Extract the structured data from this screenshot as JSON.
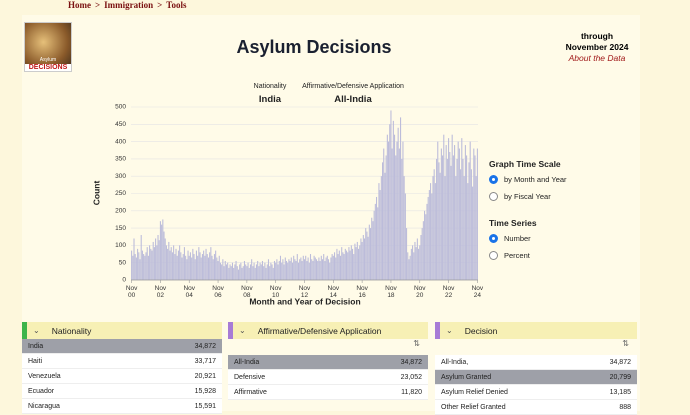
{
  "breadcrumb": {
    "items": [
      "Home",
      "Immigration",
      "Tools"
    ],
    "separator": ">"
  },
  "header": {
    "logo_top": "Asylum",
    "logo_bottom": "DECISIONS",
    "title": "Asylum Decisions",
    "through": "through",
    "date": "November 2024",
    "link": "About the Data"
  },
  "filters": [
    {
      "label": "Nationality",
      "value": "India"
    },
    {
      "label": "Affirmative/Defensive Application",
      "value": "All-India"
    }
  ],
  "chart_data": {
    "type": "bar",
    "x_label": "Month and Year of Decision",
    "y_label": "Count",
    "color": "#bcbcda",
    "grid": true,
    "ylim": [
      0,
      500
    ],
    "yticks": [
      0,
      50,
      100,
      150,
      200,
      250,
      300,
      350,
      400,
      450,
      500
    ],
    "categories": [
      "Nov 00",
      null,
      null,
      null,
      null,
      null,
      null,
      null,
      null,
      null,
      null,
      null,
      null,
      null,
      null,
      null,
      null,
      null,
      null,
      null,
      null,
      null,
      null,
      null,
      "Nov 02",
      null,
      null,
      null,
      null,
      null,
      null,
      null,
      null,
      null,
      null,
      null,
      null,
      null,
      null,
      null,
      null,
      null,
      null,
      null,
      null,
      null,
      null,
      null,
      "Nov 04",
      null,
      null,
      null,
      null,
      null,
      null,
      null,
      null,
      null,
      null,
      null,
      null,
      null,
      null,
      null,
      null,
      null,
      null,
      null,
      null,
      null,
      null,
      null,
      "Nov 06",
      null,
      null,
      null,
      null,
      null,
      null,
      null,
      null,
      null,
      null,
      null,
      null,
      null,
      null,
      null,
      null,
      null,
      null,
      null,
      null,
      null,
      null,
      null,
      "Nov 08",
      null,
      null,
      null,
      null,
      null,
      null,
      null,
      null,
      null,
      null,
      null,
      null,
      null,
      null,
      null,
      null,
      null,
      null,
      null,
      null,
      null,
      null,
      null,
      "Nov 10",
      null,
      null,
      null,
      null,
      null,
      null,
      null,
      null,
      null,
      null,
      null,
      null,
      null,
      null,
      null,
      null,
      null,
      null,
      null,
      null,
      null,
      null,
      null,
      "Nov 12",
      null,
      null,
      null,
      null,
      null,
      null,
      null,
      null,
      null,
      null,
      null,
      null,
      null,
      null,
      null,
      null,
      null,
      null,
      null,
      null,
      null,
      null,
      null,
      "Nov 14",
      null,
      null,
      null,
      null,
      null,
      null,
      null,
      null,
      null,
      null,
      null,
      null,
      null,
      null,
      null,
      null,
      null,
      null,
      null,
      null,
      null,
      null,
      null,
      "Nov 16",
      null,
      null,
      null,
      null,
      null,
      null,
      null,
      null,
      null,
      null,
      null,
      null,
      null,
      null,
      null,
      null,
      null,
      null,
      null,
      null,
      null,
      null,
      null,
      "Nov 18",
      null,
      null,
      null,
      null,
      null,
      null,
      null,
      null,
      null,
      null,
      null,
      null,
      null,
      null,
      null,
      null,
      null,
      null,
      null,
      null,
      null,
      null,
      null,
      "Nov 20",
      null,
      null,
      null,
      null,
      null,
      null,
      null,
      null,
      null,
      null,
      null,
      null,
      null,
      null,
      null,
      null,
      null,
      null,
      null,
      null,
      null,
      null,
      null,
      "Nov 22",
      null,
      null,
      null,
      null,
      null,
      null,
      null,
      null,
      null,
      null,
      null,
      null,
      null,
      null,
      null,
      null,
      null,
      null,
      null,
      null,
      null,
      null,
      null,
      "Nov 24"
    ],
    "values": [
      85,
      70,
      120,
      75,
      65,
      90,
      80,
      60,
      130,
      85,
      75,
      70,
      80,
      95,
      70,
      100,
      90,
      85,
      110,
      95,
      120,
      100,
      130,
      115,
      170,
      160,
      175,
      140,
      120,
      100,
      90,
      110,
      85,
      95,
      80,
      100,
      75,
      90,
      70,
      85,
      100,
      80,
      65,
      75,
      95,
      70,
      60,
      85,
      70,
      80,
      65,
      90,
      75,
      60,
      85,
      70,
      95,
      80,
      65,
      75,
      85,
      70,
      90,
      75,
      65,
      80,
      95,
      70,
      60,
      75,
      85,
      65,
      55,
      70,
      50,
      45,
      60,
      40,
      55,
      45,
      50,
      35,
      45,
      40,
      50,
      35,
      45,
      55,
      40,
      30,
      45,
      50,
      35,
      40,
      55,
      45,
      40,
      50,
      35,
      45,
      60,
      40,
      50,
      35,
      45,
      55,
      40,
      50,
      45,
      55,
      40,
      50,
      35,
      45,
      60,
      40,
      50,
      45,
      35,
      55,
      50,
      60,
      45,
      55,
      70,
      50,
      60,
      45,
      65,
      55,
      50,
      60,
      55,
      65,
      50,
      70,
      60,
      55,
      75,
      50,
      60,
      65,
      55,
      70,
      60,
      70,
      55,
      65,
      50,
      75,
      60,
      55,
      70,
      65,
      60,
      55,
      65,
      55,
      70,
      60,
      75,
      55,
      65,
      70,
      60,
      50,
      65,
      75,
      70,
      80,
      65,
      90,
      75,
      85,
      70,
      95,
      80,
      75,
      90,
      85,
      80,
      95,
      85,
      100,
      90,
      75,
      105,
      95,
      110,
      90,
      100,
      120,
      110,
      130,
      120,
      150,
      140,
      125,
      160,
      150,
      180,
      170,
      200,
      220,
      240,
      210,
      280,
      260,
      300,
      340,
      380,
      310,
      360,
      420,
      400,
      450,
      490,
      380,
      460,
      420,
      360,
      400,
      440,
      380,
      470,
      350,
      400,
      300,
      250,
      150,
      80,
      60,
      70,
      90,
      100,
      80,
      110,
      95,
      120,
      90,
      100,
      130,
      150,
      170,
      200,
      190,
      220,
      240,
      260,
      280,
      250,
      300,
      320,
      280,
      350,
      400,
      340,
      310,
      380,
      360,
      420,
      300,
      390,
      350,
      410,
      370,
      330,
      420,
      360,
      390,
      300,
      350,
      400,
      380,
      320,
      410,
      350,
      300,
      390,
      360,
      280,
      340,
      400,
      320,
      270,
      380,
      360,
      300,
      380
    ]
  },
  "controls": [
    {
      "label": "Graph Time Scale",
      "options": [
        "by Month and Year",
        "by Fiscal Year"
      ],
      "selected": 0
    },
    {
      "label": "Time Series",
      "options": [
        "Number",
        "Percent"
      ],
      "selected": 0
    }
  ],
  "tables": [
    {
      "title": "Nationality",
      "accent": "#3cb44b",
      "sort_icon": false,
      "selected": 0,
      "rows": [
        [
          "India",
          "34,872"
        ],
        [
          "Haiti",
          "33,717"
        ],
        [
          "Venezuela",
          "20,921"
        ],
        [
          "Ecuador",
          "15,928"
        ],
        [
          "Nicaragua",
          "15,591"
        ]
      ]
    },
    {
      "title": "Affirmative/Defensive Application",
      "accent": "#a77bd6",
      "sort_icon": true,
      "selected": 0,
      "rows": [
        [
          "All-India",
          "34,872"
        ],
        [
          "Defensive",
          "23,052"
        ],
        [
          "Affirmative",
          "11,820"
        ]
      ]
    },
    {
      "title": "Decision",
      "accent": "#a77bd6",
      "sort_icon": true,
      "selected": 1,
      "rows": [
        [
          "All-India,",
          "34,872"
        ],
        [
          "Asylum Granted",
          "20,799"
        ],
        [
          "Asylum Relief Denied",
          "13,185"
        ],
        [
          "Other Relief Granted",
          "888"
        ]
      ]
    }
  ]
}
